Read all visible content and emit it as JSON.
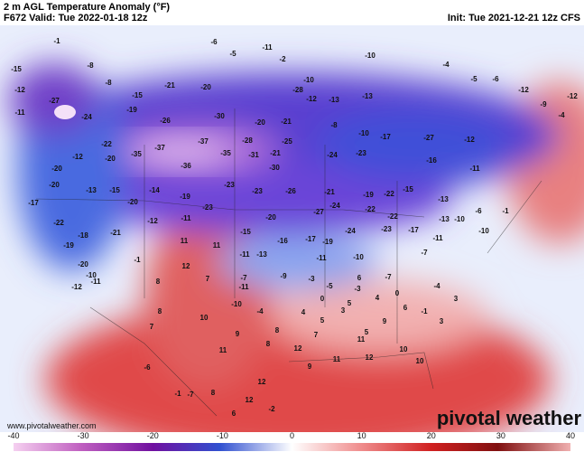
{
  "header": {
    "title": "2 m AGL Temperature Anomaly (°F)",
    "valid": "F672 Valid: Tue 2022-01-18 12z",
    "init": "Init: Tue 2021-12-21 12z CFS"
  },
  "map": {
    "labels": [
      -1,
      -8,
      -15,
      -12,
      -27,
      -24,
      -8,
      -15,
      -21,
      -20,
      -6,
      -5,
      -11,
      -2,
      -10,
      -10,
      -13,
      -4,
      -5,
      -6,
      -12,
      -12,
      -19,
      -26,
      -30,
      -20,
      -21,
      -12,
      -28,
      -13,
      -8,
      -10,
      -17,
      -27,
      -12,
      -9,
      -4,
      -37,
      -37,
      -35,
      -36,
      -35,
      -11,
      -20,
      -12,
      -22,
      -20,
      -28,
      -25,
      -21,
      -31,
      -30,
      -24,
      -23,
      -16,
      -11,
      -20,
      -13,
      -15,
      -14,
      -19,
      -23,
      -23,
      -26,
      -21,
      -19,
      -22,
      -15,
      -13,
      -17,
      -22,
      -20,
      -12,
      -23,
      -20,
      -27,
      -24,
      -22,
      -22,
      -13,
      -10,
      -6,
      -1,
      -19,
      -18,
      -21,
      -11,
      -15,
      -16,
      -17,
      -19,
      -24,
      -23,
      -17,
      -11,
      -10,
      -20,
      -10,
      11,
      11,
      -1,
      12,
      -11,
      -13,
      -11,
      -10,
      -7,
      -12,
      -11,
      -7,
      -11,
      -9,
      -3,
      -5,
      -3,
      6,
      -7,
      -4,
      8,
      7,
      -10,
      -4,
      0,
      5,
      4,
      0,
      6,
      -1,
      3,
      8,
      7,
      10,
      9,
      4,
      3,
      9,
      5,
      3,
      5,
      8,
      8,
      7,
      11,
      12,
      11,
      12,
      10,
      10,
      9,
      11,
      12,
      8,
      12,
      6,
      -2,
      -6,
      -7,
      -1
    ]
  },
  "footer": {
    "url": "www.pivotalweather.com",
    "brand": "pivotal weather"
  },
  "colorbar": {
    "ticks": [
      -40,
      -30,
      -20,
      -10,
      0,
      10,
      20,
      30,
      40
    ]
  }
}
